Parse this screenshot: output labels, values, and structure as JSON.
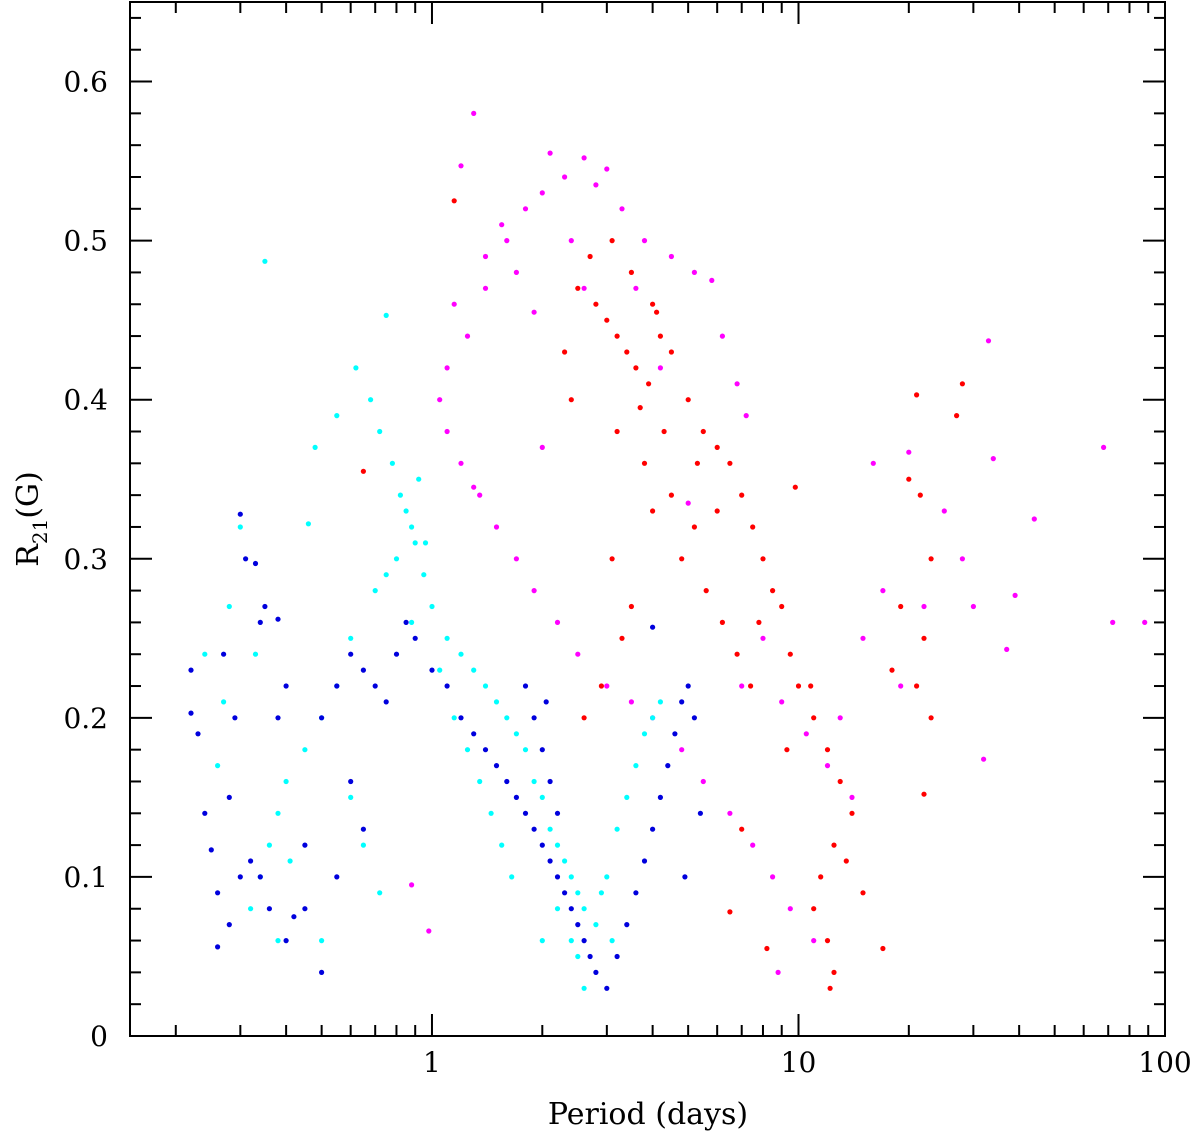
{
  "chart_data": {
    "type": "scatter",
    "title": "",
    "xlabel": "Period (days)",
    "ylabel_main": "R",
    "ylabel_sub": "21",
    "ylabel_tail": "(G)",
    "xscale": "log",
    "xlim": [
      0.15,
      100
    ],
    "ylim": [
      0,
      0.65
    ],
    "x_ticks": [
      1,
      10,
      100
    ],
    "x_tick_labels": [
      "1",
      "10",
      "100"
    ],
    "y_ticks": [
      0,
      0.1,
      0.2,
      0.3,
      0.4,
      0.5,
      0.6
    ],
    "y_tick_labels": [
      "0",
      "0.1",
      "0.2",
      "0.3",
      "0.4",
      "0.5",
      "0.6"
    ],
    "grid": false,
    "legend": "none",
    "series": [
      {
        "color": "#ff00ff",
        "points": [
          [
            1.3,
            0.58
          ],
          [
            1.2,
            0.547
          ],
          [
            1.55,
            0.51
          ],
          [
            2.1,
            0.555
          ],
          [
            2.6,
            0.552
          ],
          [
            3.0,
            0.545
          ],
          [
            1.4,
            0.49
          ],
          [
            1.6,
            0.5
          ],
          [
            1.8,
            0.52
          ],
          [
            2.0,
            0.53
          ],
          [
            2.3,
            0.54
          ],
          [
            2.8,
            0.535
          ],
          [
            3.3,
            0.52
          ],
          [
            3.8,
            0.5
          ],
          [
            4.5,
            0.49
          ],
          [
            5.2,
            0.48
          ],
          [
            5.8,
            0.475
          ],
          [
            1.15,
            0.46
          ],
          [
            1.25,
            0.44
          ],
          [
            1.1,
            0.42
          ],
          [
            1.05,
            0.4
          ],
          [
            1.1,
            0.38
          ],
          [
            1.2,
            0.36
          ],
          [
            1.35,
            0.34
          ],
          [
            1.5,
            0.32
          ],
          [
            1.7,
            0.3
          ],
          [
            1.9,
            0.28
          ],
          [
            2.2,
            0.26
          ],
          [
            2.5,
            0.24
          ],
          [
            3.0,
            0.22
          ],
          [
            3.5,
            0.21
          ],
          [
            4.0,
            0.2
          ],
          [
            4.8,
            0.18
          ],
          [
            5.5,
            0.16
          ],
          [
            6.5,
            0.14
          ],
          [
            7.5,
            0.12
          ],
          [
            8.5,
            0.1
          ],
          [
            9.5,
            0.08
          ],
          [
            11.0,
            0.06
          ],
          [
            8.8,
            0.04
          ],
          [
            7.0,
            0.22
          ],
          [
            8.0,
            0.25
          ],
          [
            9.0,
            0.21
          ],
          [
            10.5,
            0.19
          ],
          [
            12.0,
            0.17
          ],
          [
            14.0,
            0.15
          ],
          [
            16.0,
            0.36
          ],
          [
            17.0,
            0.28
          ],
          [
            19.0,
            0.22
          ],
          [
            22.0,
            0.27
          ],
          [
            28.0,
            0.3
          ],
          [
            33.0,
            0.437
          ],
          [
            34.0,
            0.363
          ],
          [
            30.0,
            0.27
          ],
          [
            37.0,
            0.243
          ],
          [
            39.0,
            0.277
          ],
          [
            44.0,
            0.325
          ],
          [
            68.0,
            0.37
          ],
          [
            72.0,
            0.26
          ],
          [
            88.0,
            0.26
          ],
          [
            32.0,
            0.174
          ],
          [
            25.0,
            0.33
          ],
          [
            20.0,
            0.367
          ],
          [
            15.0,
            0.25
          ],
          [
            13.0,
            0.2
          ],
          [
            1.4,
            0.47
          ],
          [
            1.7,
            0.48
          ],
          [
            2.4,
            0.5
          ],
          [
            3.6,
            0.47
          ],
          [
            6.2,
            0.44
          ],
          [
            6.8,
            0.41
          ],
          [
            7.2,
            0.39
          ],
          [
            1.9,
            0.455
          ],
          [
            2.6,
            0.47
          ],
          [
            4.2,
            0.42
          ],
          [
            0.88,
            0.095
          ],
          [
            0.98,
            0.066
          ],
          [
            1.3,
            0.345
          ],
          [
            2.0,
            0.37
          ],
          [
            5.0,
            0.335
          ]
        ]
      },
      {
        "color": "#ff0000",
        "points": [
          [
            2.5,
            0.47
          ],
          [
            2.8,
            0.46
          ],
          [
            3.0,
            0.45
          ],
          [
            3.2,
            0.44
          ],
          [
            3.4,
            0.43
          ],
          [
            3.6,
            0.42
          ],
          [
            3.9,
            0.41
          ],
          [
            4.2,
            0.44
          ],
          [
            2.7,
            0.49
          ],
          [
            3.1,
            0.5
          ],
          [
            3.5,
            0.48
          ],
          [
            4.0,
            0.46
          ],
          [
            4.5,
            0.43
          ],
          [
            5.0,
            0.4
          ],
          [
            5.5,
            0.38
          ],
          [
            6.0,
            0.37
          ],
          [
            6.5,
            0.36
          ],
          [
            7.0,
            0.34
          ],
          [
            7.5,
            0.32
          ],
          [
            8.0,
            0.3
          ],
          [
            8.5,
            0.28
          ],
          [
            9.0,
            0.27
          ],
          [
            9.5,
            0.24
          ],
          [
            10.0,
            0.22
          ],
          [
            11.0,
            0.2
          ],
          [
            12.0,
            0.18
          ],
          [
            13.0,
            0.16
          ],
          [
            14.0,
            0.14
          ],
          [
            12.5,
            0.12
          ],
          [
            11.5,
            0.1
          ],
          [
            11.0,
            0.08
          ],
          [
            12.0,
            0.06
          ],
          [
            12.5,
            0.04
          ],
          [
            12.2,
            0.03
          ],
          [
            3.2,
            0.38
          ],
          [
            3.8,
            0.36
          ],
          [
            4.5,
            0.34
          ],
          [
            5.2,
            0.32
          ],
          [
            4.8,
            0.3
          ],
          [
            5.6,
            0.28
          ],
          [
            6.2,
            0.26
          ],
          [
            6.8,
            0.24
          ],
          [
            7.4,
            0.22
          ],
          [
            3.1,
            0.3
          ],
          [
            3.5,
            0.27
          ],
          [
            3.3,
            0.25
          ],
          [
            2.9,
            0.22
          ],
          [
            2.6,
            0.2
          ],
          [
            0.65,
            0.355
          ],
          [
            1.15,
            0.525
          ],
          [
            21.0,
            0.403
          ],
          [
            28.0,
            0.41
          ],
          [
            27.0,
            0.39
          ],
          [
            20.0,
            0.35
          ],
          [
            21.5,
            0.34
          ],
          [
            23.0,
            0.3
          ],
          [
            22.0,
            0.25
          ],
          [
            21.0,
            0.22
          ],
          [
            23.0,
            0.2
          ],
          [
            22.0,
            0.152
          ],
          [
            19.0,
            0.27
          ],
          [
            18.0,
            0.23
          ],
          [
            17.0,
            0.055
          ],
          [
            13.5,
            0.11
          ],
          [
            15.0,
            0.09
          ],
          [
            10.8,
            0.22
          ],
          [
            9.8,
            0.345
          ],
          [
            8.2,
            0.055
          ],
          [
            6.5,
            0.078
          ],
          [
            7.0,
            0.13
          ],
          [
            4.0,
            0.33
          ],
          [
            4.3,
            0.38
          ],
          [
            2.4,
            0.4
          ],
          [
            2.3,
            0.43
          ],
          [
            3.7,
            0.395
          ],
          [
            4.1,
            0.455
          ],
          [
            5.3,
            0.36
          ],
          [
            6.0,
            0.33
          ],
          [
            7.8,
            0.26
          ],
          [
            9.3,
            0.18
          ]
        ]
      },
      {
        "color": "#00ffff",
        "points": [
          [
            0.35,
            0.487
          ],
          [
            0.75,
            0.453
          ],
          [
            0.62,
            0.42
          ],
          [
            0.68,
            0.4
          ],
          [
            0.72,
            0.38
          ],
          [
            0.78,
            0.36
          ],
          [
            0.82,
            0.34
          ],
          [
            0.85,
            0.33
          ],
          [
            0.88,
            0.32
          ],
          [
            0.9,
            0.31
          ],
          [
            0.8,
            0.3
          ],
          [
            0.75,
            0.29
          ],
          [
            0.7,
            0.28
          ],
          [
            0.95,
            0.29
          ],
          [
            1.0,
            0.27
          ],
          [
            1.1,
            0.25
          ],
          [
            1.2,
            0.24
          ],
          [
            1.3,
            0.23
          ],
          [
            1.4,
            0.22
          ],
          [
            1.5,
            0.21
          ],
          [
            1.6,
            0.2
          ],
          [
            1.7,
            0.19
          ],
          [
            1.8,
            0.18
          ],
          [
            1.9,
            0.16
          ],
          [
            2.0,
            0.15
          ],
          [
            2.1,
            0.13
          ],
          [
            2.2,
            0.12
          ],
          [
            2.3,
            0.11
          ],
          [
            2.4,
            0.1
          ],
          [
            2.5,
            0.09
          ],
          [
            2.6,
            0.08
          ],
          [
            2.4,
            0.06
          ],
          [
            2.5,
            0.05
          ],
          [
            2.6,
            0.03
          ],
          [
            2.8,
            0.07
          ],
          [
            3.0,
            0.1
          ],
          [
            3.2,
            0.13
          ],
          [
            3.4,
            0.15
          ],
          [
            3.6,
            0.17
          ],
          [
            3.8,
            0.19
          ],
          [
            4.0,
            0.2
          ],
          [
            4.2,
            0.21
          ],
          [
            0.6,
            0.25
          ],
          [
            0.55,
            0.22
          ],
          [
            0.5,
            0.2
          ],
          [
            0.45,
            0.18
          ],
          [
            0.4,
            0.16
          ],
          [
            0.38,
            0.14
          ],
          [
            0.36,
            0.12
          ],
          [
            0.34,
            0.1
          ],
          [
            0.32,
            0.08
          ],
          [
            0.3,
            0.32
          ],
          [
            0.33,
            0.24
          ],
          [
            0.28,
            0.27
          ],
          [
            0.6,
            0.15
          ],
          [
            0.65,
            0.12
          ],
          [
            0.72,
            0.09
          ],
          [
            0.5,
            0.06
          ],
          [
            0.38,
            0.06
          ],
          [
            0.41,
            0.11
          ],
          [
            0.92,
            0.35
          ],
          [
            0.96,
            0.31
          ],
          [
            0.88,
            0.26
          ],
          [
            1.05,
            0.23
          ],
          [
            1.15,
            0.2
          ],
          [
            1.25,
            0.18
          ],
          [
            1.35,
            0.16
          ],
          [
            1.45,
            0.14
          ],
          [
            1.55,
            0.12
          ],
          [
            1.65,
            0.1
          ],
          [
            2.2,
            0.08
          ],
          [
            2.0,
            0.06
          ],
          [
            2.9,
            0.09
          ],
          [
            3.1,
            0.06
          ],
          [
            0.46,
            0.322
          ],
          [
            0.48,
            0.37
          ],
          [
            0.55,
            0.39
          ],
          [
            0.27,
            0.21
          ],
          [
            0.24,
            0.24
          ],
          [
            0.26,
            0.17
          ]
        ]
      },
      {
        "color": "#0000dd",
        "points": [
          [
            0.3,
            0.328
          ],
          [
            0.31,
            0.3
          ],
          [
            0.33,
            0.297
          ],
          [
            0.35,
            0.27
          ],
          [
            0.34,
            0.26
          ],
          [
            0.38,
            0.262
          ],
          [
            0.27,
            0.24
          ],
          [
            0.22,
            0.23
          ],
          [
            0.22,
            0.203
          ],
          [
            0.23,
            0.19
          ],
          [
            0.24,
            0.14
          ],
          [
            0.25,
            0.117
          ],
          [
            0.26,
            0.09
          ],
          [
            0.26,
            0.056
          ],
          [
            0.28,
            0.07
          ],
          [
            0.3,
            0.1
          ],
          [
            0.32,
            0.11
          ],
          [
            0.34,
            0.1
          ],
          [
            0.36,
            0.08
          ],
          [
            0.4,
            0.06
          ],
          [
            0.42,
            0.075
          ],
          [
            0.5,
            0.04
          ],
          [
            0.45,
            0.12
          ],
          [
            0.5,
            0.2
          ],
          [
            0.55,
            0.22
          ],
          [
            0.6,
            0.24
          ],
          [
            0.65,
            0.23
          ],
          [
            0.7,
            0.22
          ],
          [
            0.75,
            0.21
          ],
          [
            0.8,
            0.24
          ],
          [
            0.85,
            0.26
          ],
          [
            0.9,
            0.25
          ],
          [
            1.0,
            0.23
          ],
          [
            1.1,
            0.22
          ],
          [
            1.2,
            0.2
          ],
          [
            1.3,
            0.19
          ],
          [
            1.4,
            0.18
          ],
          [
            1.5,
            0.17
          ],
          [
            1.6,
            0.16
          ],
          [
            1.7,
            0.15
          ],
          [
            1.8,
            0.14
          ],
          [
            1.9,
            0.13
          ],
          [
            2.0,
            0.12
          ],
          [
            2.1,
            0.11
          ],
          [
            2.2,
            0.1
          ],
          [
            2.3,
            0.09
          ],
          [
            2.4,
            0.08
          ],
          [
            2.5,
            0.07
          ],
          [
            2.6,
            0.06
          ],
          [
            2.7,
            0.05
          ],
          [
            2.8,
            0.04
          ],
          [
            3.0,
            0.03
          ],
          [
            3.2,
            0.05
          ],
          [
            3.4,
            0.07
          ],
          [
            3.6,
            0.09
          ],
          [
            3.8,
            0.11
          ],
          [
            4.0,
            0.13
          ],
          [
            4.2,
            0.15
          ],
          [
            4.4,
            0.17
          ],
          [
            4.6,
            0.19
          ],
          [
            4.8,
            0.21
          ],
          [
            5.0,
            0.22
          ],
          [
            5.2,
            0.2
          ],
          [
            4.0,
            0.257
          ],
          [
            1.8,
            0.22
          ],
          [
            1.9,
            0.2
          ],
          [
            2.0,
            0.18
          ],
          [
            2.1,
            0.16
          ],
          [
            2.2,
            0.14
          ],
          [
            2.05,
            0.21
          ],
          [
            0.6,
            0.16
          ],
          [
            0.65,
            0.13
          ],
          [
            0.55,
            0.1
          ],
          [
            0.45,
            0.08
          ],
          [
            0.38,
            0.2
          ],
          [
            0.4,
            0.22
          ],
          [
            0.28,
            0.15
          ],
          [
            0.29,
            0.2
          ],
          [
            5.4,
            0.14
          ],
          [
            4.9,
            0.1
          ]
        ]
      }
    ]
  }
}
